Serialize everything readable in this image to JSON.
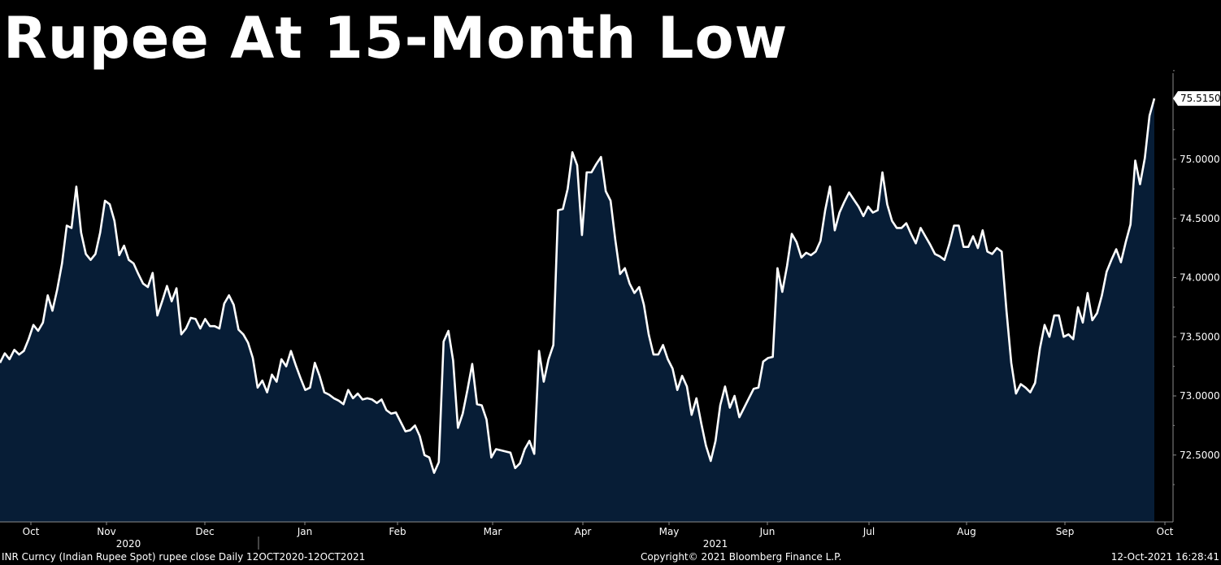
{
  "title": "Rupee At 15-Month Low",
  "footer": {
    "source": "INR Curncy (Indian Rupee Spot) rupee close  Daily 12OCT2020-12OCT2021",
    "copyright": "Copyright© 2021 Bloomberg Finance L.P.",
    "timestamp": "12-Oct-2021 16:28:41"
  },
  "colors": {
    "background": "#000000",
    "area_fill": "#071d36",
    "line": "#ffffff"
  },
  "chart_data": {
    "type": "area",
    "title": "Rupee At 15-Month Low",
    "series": [
      {
        "values": [
          73.28,
          73.36,
          73.31,
          73.39,
          73.35,
          73.38,
          73.48,
          73.6,
          73.55,
          73.62,
          73.85,
          73.72,
          73.9,
          74.12,
          74.44,
          74.42,
          74.77,
          74.38,
          74.2,
          74.15,
          74.2,
          74.38,
          74.65,
          74.62,
          74.48,
          74.19,
          74.27,
          74.15,
          74.12,
          74.03,
          73.95,
          73.92,
          74.04,
          73.68,
          73.8,
          73.93,
          73.8,
          73.91,
          73.52,
          73.57,
          73.66,
          73.65,
          73.57,
          73.65,
          73.59,
          73.59,
          73.57,
          73.78,
          73.85,
          73.77,
          73.56,
          73.52,
          73.45,
          73.32,
          73.07,
          73.13,
          73.03,
          73.18,
          73.12,
          73.31,
          73.25,
          73.38,
          73.26,
          73.15,
          73.05,
          73.07,
          73.28,
          73.17,
          73.03,
          73.01,
          72.98,
          72.96,
          72.93,
          73.05,
          72.98,
          73.02,
          72.97,
          72.98,
          72.97,
          72.94,
          72.97,
          72.88,
          72.85,
          72.86,
          72.78,
          72.7,
          72.71,
          72.75,
          72.66,
          72.5,
          72.48,
          72.35,
          72.44,
          73.46,
          73.55,
          73.3,
          72.73,
          72.85,
          73.05,
          73.27,
          72.93,
          72.92,
          72.8,
          72.48,
          72.55,
          72.54,
          72.53,
          72.52,
          72.39,
          72.43,
          72.55,
          72.62,
          72.51,
          73.38,
          73.12,
          73.31,
          73.43,
          74.57,
          74.58,
          74.75,
          75.06,
          74.95,
          74.36,
          74.89,
          74.89,
          74.96,
          75.02,
          74.73,
          74.65,
          74.32,
          74.03,
          74.08,
          73.95,
          73.87,
          73.92,
          73.77,
          73.52,
          73.35,
          73.35,
          73.43,
          73.31,
          73.23,
          73.05,
          73.17,
          73.08,
          72.84,
          72.98,
          72.77,
          72.58,
          72.45,
          72.62,
          72.92,
          73.08,
          72.9,
          73.0,
          72.82,
          72.9,
          72.98,
          73.06,
          73.07,
          73.29,
          73.32,
          73.33,
          74.08,
          73.88,
          74.1,
          74.37,
          74.3,
          74.17,
          74.21,
          74.19,
          74.22,
          74.31,
          74.57,
          74.77,
          74.4,
          74.55,
          74.64,
          74.72,
          74.66,
          74.6,
          74.52,
          74.6,
          74.55,
          74.57,
          74.89,
          74.62,
          74.48,
          74.42,
          74.42,
          74.46,
          74.37,
          74.29,
          74.42,
          74.35,
          74.28,
          74.2,
          74.18,
          74.15,
          74.28,
          74.44,
          74.44,
          74.26,
          74.26,
          74.35,
          74.25,
          74.4,
          74.22,
          74.2,
          74.25,
          74.22,
          73.72,
          73.28,
          73.02,
          73.1,
          73.07,
          73.03,
          73.11,
          73.4,
          73.6,
          73.5,
          73.68,
          73.68,
          73.5,
          73.52,
          73.48,
          73.75,
          73.62,
          73.87,
          73.64,
          73.7,
          73.85,
          74.05,
          74.15,
          74.24,
          74.13,
          74.3,
          74.45,
          74.99,
          74.79,
          75.01,
          75.37,
          75.515
        ]
      }
    ],
    "last_value_label": "75.5150",
    "y_ticks": [
      "72.5000",
      "73.0000",
      "73.5000",
      "74.0000",
      "74.5000",
      "75.0000"
    ],
    "ylim": [
      72.05,
      76.05
    ],
    "x_tick_labels": [
      "Oct",
      "Nov",
      "Dec",
      "Jan",
      "Feb",
      "Mar",
      "Apr",
      "May",
      "Jun",
      "Jul",
      "Aug",
      "Sep",
      "Oct"
    ],
    "x_year_labels": [
      "2020",
      "2021"
    ],
    "grid": false
  }
}
